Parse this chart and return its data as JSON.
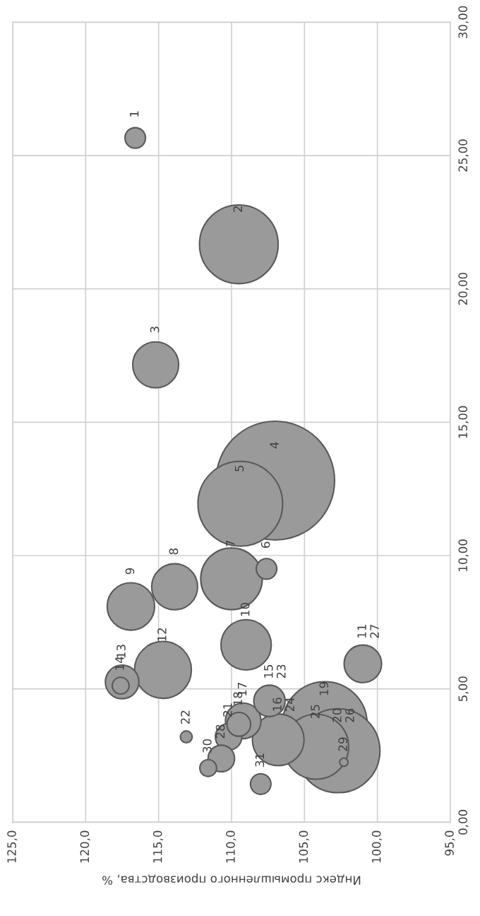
{
  "chart_data": {
    "type": "bubble",
    "xlabel": "Индекс промышленного производства, %",
    "x": [
      107.0,
      103.6,
      109.4,
      102.7,
      109.5,
      104.2,
      110.0,
      114.7,
      106.8,
      109.0,
      116.9,
      115.2,
      113.9,
      101.0,
      109.2,
      117.5,
      107.4,
      110.2,
      110.7,
      109.5,
      108.0,
      116.6,
      107.6,
      111.6,
      117.6,
      113.1,
      102.3
    ],
    "values": [
      12.81,
      3.68,
      11.94,
      2.68,
      21.67,
      2.83,
      9.13,
      5.71,
      3.09,
      6.65,
      8.09,
      17.15,
      8.83,
      5.94,
      3.8,
      5.26,
      4.55,
      3.2,
      2.39,
      3.67,
      1.43,
      25.66,
      9.5,
      2.03,
      5.12,
      3.2,
      2.25
    ],
    "sizes": [
      1,
      0.51,
      0.51,
      0.5,
      0.44,
      0.3,
      0.27,
      0.23,
      0.19,
      0.18,
      0.16,
      0.15,
      0.15,
      0.1,
      0.09,
      0.08,
      0.07,
      0.05,
      0.05,
      0.04,
      0.03,
      0.03,
      0.03,
      0.02,
      0.02,
      0.01,
      0.005
    ],
    "color": "#9a9a9a",
    "xlim": [
      125,
      95
    ],
    "xticks": [
      {
        "value": 125,
        "label": "125,0"
      },
      {
        "value": 120,
        "label": "120,0"
      },
      {
        "value": 115,
        "label": "115,0"
      },
      {
        "value": 110,
        "label": "110,0"
      },
      {
        "value": 105,
        "label": "105,0"
      },
      {
        "value": 100,
        "label": "100,0"
      },
      {
        "value": 95,
        "label": "95,0"
      }
    ],
    "ylim": [
      0,
      30
    ],
    "yticks": [
      {
        "value": 0,
        "label": "0,00"
      },
      {
        "value": 5,
        "label": "5,00"
      },
      {
        "value": 10,
        "label": "10,00"
      },
      {
        "value": 15,
        "label": "15,00"
      },
      {
        "value": 20,
        "label": "20,00"
      },
      {
        "value": 25,
        "label": "25,00"
      },
      {
        "value": 30,
        "label": "30,00"
      }
    ],
    "grid": true,
    "annotations": [
      {
        "text": "1",
        "x": 116.6,
        "y": 25.66
      },
      {
        "text": "2",
        "x": 109.5,
        "y": 21.67
      },
      {
        "text": "3",
        "x": 115.2,
        "y": 17.15
      },
      {
        "text": "4",
        "x": 107.0,
        "y": 12.81
      },
      {
        "text": "5",
        "x": 109.4,
        "y": 11.94
      },
      {
        "text": "6",
        "x": 107.6,
        "y": 9.5
      },
      {
        "text": "7",
        "x": 110.0,
        "y": 9.13
      },
      {
        "text": "8",
        "x": 113.9,
        "y": 8.83
      },
      {
        "text": "9",
        "x": 116.9,
        "y": 8.09
      },
      {
        "text": "10",
        "x": 109.0,
        "y": 6.65
      },
      {
        "text": "11",
        "x": 101.0,
        "y": 5.94
      },
      {
        "text": "12",
        "x": 114.7,
        "y": 5.71
      },
      {
        "text": "13",
        "x": 117.5,
        "y": 5.26
      },
      {
        "text": "14",
        "x": 117.6,
        "y": 5.12
      },
      {
        "text": "15",
        "x": 107.4,
        "y": 4.55
      },
      {
        "text": "16",
        "x": 106.8,
        "y": 3.09
      },
      {
        "text": "17",
        "x": 109.2,
        "y": 3.8
      },
      {
        "text": "18",
        "x": 109.5,
        "y": 3.67
      },
      {
        "text": "19",
        "x": 103.6,
        "y": 3.68
      },
      {
        "text": "20",
        "x": 102.7,
        "y": 2.68
      },
      {
        "text": "21",
        "x": 110.2,
        "y": 3.2
      },
      {
        "text": "22",
        "x": 113.1,
        "y": 3.2
      },
      {
        "text": "23",
        "x": 107.4,
        "y": 4.55
      },
      {
        "text": "24",
        "x": 106.8,
        "y": 3.09
      },
      {
        "text": "25",
        "x": 104.2,
        "y": 2.83
      },
      {
        "text": "26",
        "x": 102.7,
        "y": 2.68
      },
      {
        "text": "27",
        "x": 101.0,
        "y": 5.94
      },
      {
        "text": "28",
        "x": 110.7,
        "y": 2.39
      },
      {
        "text": "29",
        "x": 102.3,
        "y": 2.25
      },
      {
        "text": "30",
        "x": 111.6,
        "y": 2.03
      },
      {
        "text": "31",
        "x": 108.0,
        "y": 1.43
      }
    ]
  }
}
